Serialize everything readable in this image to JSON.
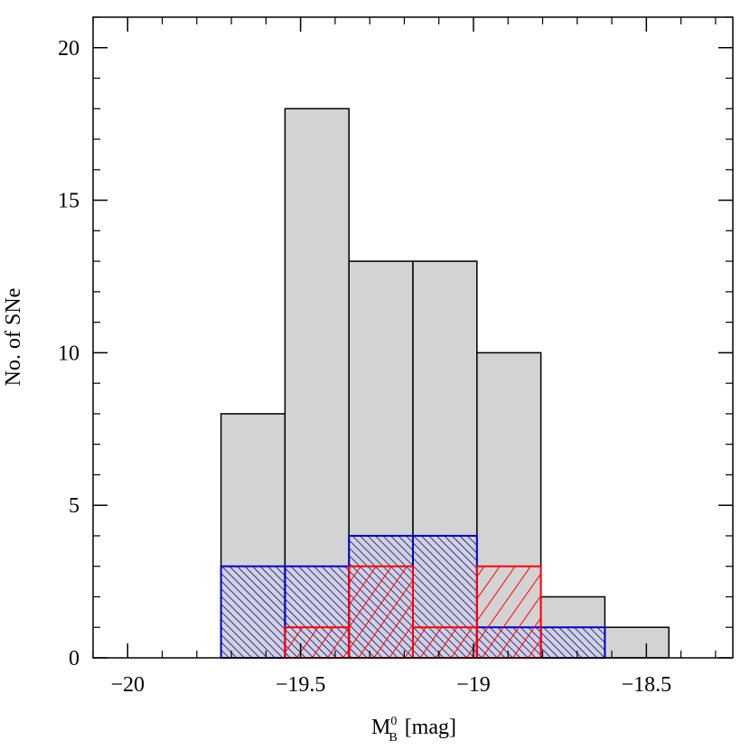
{
  "chart_data": {
    "type": "histogram",
    "bins": [
      -19.73,
      -19.545,
      -19.36,
      -19.175,
      -18.99,
      -18.805,
      -18.62,
      -18.435
    ],
    "series": [
      {
        "color": "#d3d3d3",
        "edge": "#000000",
        "hatch": "none",
        "values": [
          8,
          18,
          13,
          13,
          10,
          2,
          1
        ]
      },
      {
        "color": "#0000cc",
        "edge": "#0000cc",
        "hatch": "backslash",
        "values": [
          3,
          3,
          4,
          4,
          1,
          1,
          0
        ]
      },
      {
        "color": "#ff0000",
        "edge": "#ff0000",
        "hatch": "slash",
        "values": [
          0,
          1,
          3,
          1,
          3,
          0,
          0
        ]
      }
    ],
    "xlim": [
      -20.1,
      -18.25
    ],
    "ylim": [
      0,
      21
    ],
    "xticks": [
      {
        "value": -20,
        "label": "−20"
      },
      {
        "value": -19.5,
        "label": "−19.5"
      },
      {
        "value": -19,
        "label": "−19"
      },
      {
        "value": -18.5,
        "label": "−18.5"
      }
    ],
    "xminorticks": [
      -20.1,
      -19.9,
      -19.8,
      -19.7,
      -19.6,
      -19.4,
      -19.3,
      -19.2,
      -19.1,
      -18.9,
      -18.8,
      -18.7,
      -18.6,
      -18.4,
      -18.3
    ],
    "yticks": [
      0,
      5,
      10,
      15,
      20
    ],
    "yminorticks": [
      1,
      2,
      3,
      4,
      6,
      7,
      8,
      9,
      11,
      12,
      13,
      14,
      16,
      17,
      18,
      19,
      21
    ],
    "x_label": {
      "main": "M",
      "sup": "0",
      "sub": "B",
      "unit": "[mag]"
    },
    "y_label": "No. of SNe"
  }
}
